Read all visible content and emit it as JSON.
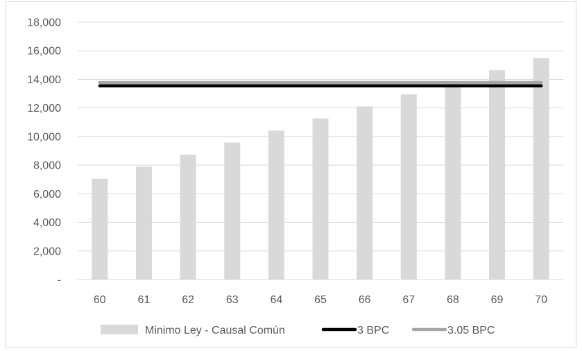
{
  "chart_data": {
    "type": "bar",
    "categories": [
      "60",
      "61",
      "62",
      "63",
      "64",
      "65",
      "66",
      "67",
      "68",
      "69",
      "70"
    ],
    "series": [
      {
        "name": "Minimo Ley - Causal Común",
        "kind": "bar",
        "color": "#d9d9d9",
        "values": [
          7050,
          7890,
          8740,
          9580,
          10420,
          11270,
          12110,
          12950,
          13800,
          14640,
          15480
        ]
      },
      {
        "name": "3 BPC",
        "kind": "line",
        "color": "#000000",
        "values": [
          13550,
          13550,
          13550,
          13550,
          13550,
          13550,
          13550,
          13550,
          13550,
          13550,
          13550
        ]
      },
      {
        "name": "3.05 BPC",
        "kind": "line",
        "color": "#a6a6a6",
        "values": [
          13780,
          13780,
          13780,
          13780,
          13780,
          13780,
          13780,
          13780,
          13780,
          13780,
          13780
        ]
      }
    ],
    "ylim": [
      0,
      18000
    ],
    "yticks": [
      0,
      2000,
      4000,
      6000,
      8000,
      10000,
      12000,
      14000,
      16000,
      18000
    ],
    "ytick_labels": [
      "-",
      "2,000",
      "4,000",
      "6,000",
      "8,000",
      "10,000",
      "12,000",
      "14,000",
      "16,000",
      "18,000"
    ],
    "grid": true,
    "gridline_color": "#d9d9d9",
    "legend_position": "bottom",
    "title": "",
    "xlabel": "",
    "ylabel": ""
  }
}
